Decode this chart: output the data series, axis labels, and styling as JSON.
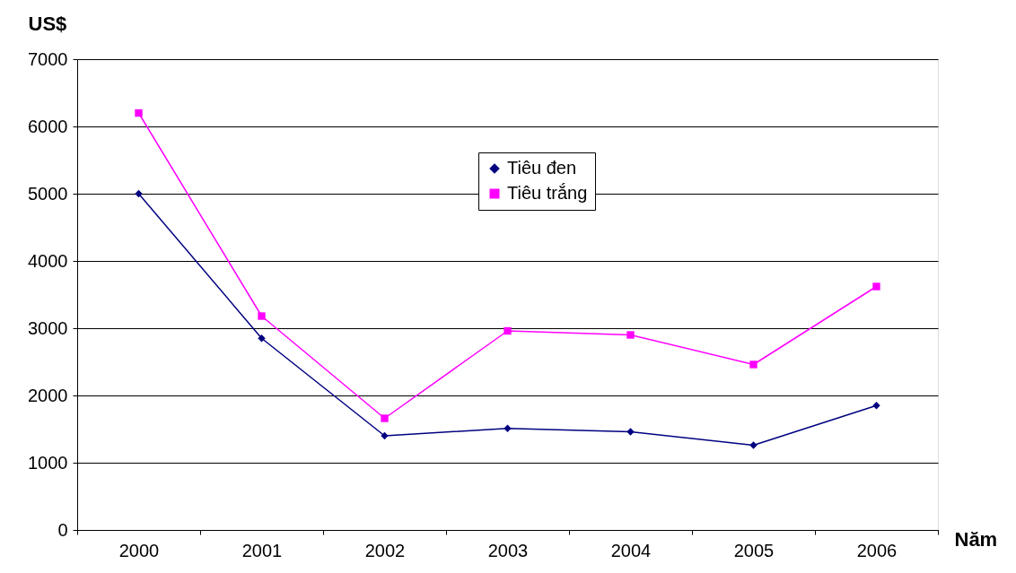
{
  "chart_data": {
    "type": "line",
    "ylabel": "US$",
    "xlabel": "Năm",
    "categories": [
      "2000",
      "2001",
      "2002",
      "2003",
      "2004",
      "2005",
      "2006"
    ],
    "series": [
      {
        "name": "Tiêu đen",
        "color": "#000080",
        "marker": "diamond",
        "values": [
          5000,
          2850,
          1400,
          1510,
          1460,
          1260,
          1850
        ]
      },
      {
        "name": "Tiêu trắng",
        "color": "#ff00ff",
        "marker": "square",
        "values": [
          6200,
          3180,
          1660,
          2960,
          2900,
          2460,
          3620
        ]
      }
    ],
    "ylim": [
      0,
      7000
    ],
    "yticks": [
      0,
      1000,
      2000,
      3000,
      4000,
      5000,
      6000,
      7000
    ],
    "grid": "y",
    "legend": "top",
    "line_style": "solid"
  }
}
